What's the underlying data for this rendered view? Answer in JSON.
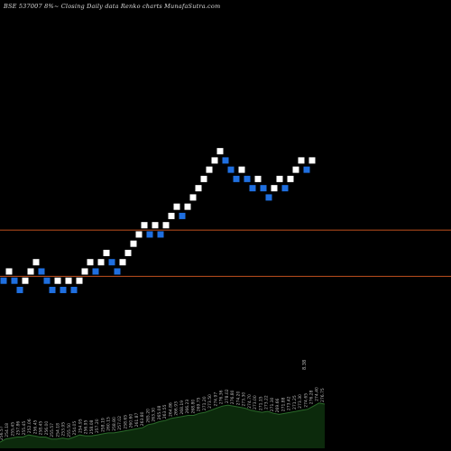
{
  "header": {
    "title": "BSE 537007 8%~  Closing Daily data  Renko  charts MunafaSutra.com"
  },
  "colors": {
    "background": "#000000",
    "brick_up": "#ffffff",
    "brick_down": "#1f6fe0",
    "reference_line": "#c0501e",
    "volume_fill": "#0c2a0c",
    "volume_line": "#2a6a2a",
    "label": "#bbbbbb"
  },
  "chart_data": {
    "type": "renko",
    "title": "BSE 537007 8%~  Closing Daily data  Renko  charts MunafaSutra.com",
    "bricks": [
      {
        "level": 255.45,
        "dir": "down"
      },
      {
        "level": 257.05,
        "dir": "up"
      },
      {
        "level": 255.45,
        "dir": "down"
      },
      {
        "level": 253.85,
        "dir": "down"
      },
      {
        "level": 255.45,
        "dir": "up"
      },
      {
        "level": 257.05,
        "dir": "up"
      },
      {
        "level": 258.65,
        "dir": "up"
      },
      {
        "level": 257.05,
        "dir": "down"
      },
      {
        "level": 255.45,
        "dir": "down"
      },
      {
        "level": 253.85,
        "dir": "down"
      },
      {
        "level": 255.45,
        "dir": "up"
      },
      {
        "level": 253.85,
        "dir": "down"
      },
      {
        "level": 255.45,
        "dir": "up"
      },
      {
        "level": 253.85,
        "dir": "down"
      },
      {
        "level": 255.45,
        "dir": "up"
      },
      {
        "level": 257.05,
        "dir": "up"
      },
      {
        "level": 258.65,
        "dir": "up"
      },
      {
        "level": 257.05,
        "dir": "down"
      },
      {
        "level": 258.65,
        "dir": "up"
      },
      {
        "level": 260.25,
        "dir": "up"
      },
      {
        "level": 258.65,
        "dir": "down"
      },
      {
        "level": 257.05,
        "dir": "down"
      },
      {
        "level": 258.65,
        "dir": "up"
      },
      {
        "level": 260.25,
        "dir": "up"
      },
      {
        "level": 261.85,
        "dir": "up"
      },
      {
        "level": 263.45,
        "dir": "up"
      },
      {
        "level": 265.05,
        "dir": "up"
      },
      {
        "level": 263.45,
        "dir": "down"
      },
      {
        "level": 265.05,
        "dir": "up"
      },
      {
        "level": 263.45,
        "dir": "down"
      },
      {
        "level": 265.05,
        "dir": "up"
      },
      {
        "level": 266.65,
        "dir": "up"
      },
      {
        "level": 268.25,
        "dir": "up"
      },
      {
        "level": 266.65,
        "dir": "down"
      },
      {
        "level": 268.25,
        "dir": "up"
      },
      {
        "level": 269.85,
        "dir": "up"
      },
      {
        "level": 271.45,
        "dir": "up"
      },
      {
        "level": 273.05,
        "dir": "up"
      },
      {
        "level": 274.65,
        "dir": "up"
      },
      {
        "level": 276.25,
        "dir": "up"
      },
      {
        "level": 277.85,
        "dir": "up"
      },
      {
        "level": 276.25,
        "dir": "down"
      },
      {
        "level": 274.65,
        "dir": "down"
      },
      {
        "level": 273.05,
        "dir": "down"
      },
      {
        "level": 274.65,
        "dir": "up"
      },
      {
        "level": 273.05,
        "dir": "down"
      },
      {
        "level": 271.45,
        "dir": "down"
      },
      {
        "level": 273.05,
        "dir": "up"
      },
      {
        "level": 271.45,
        "dir": "down"
      },
      {
        "level": 269.85,
        "dir": "down"
      },
      {
        "level": 271.45,
        "dir": "up"
      },
      {
        "level": 273.05,
        "dir": "up"
      },
      {
        "level": 271.45,
        "dir": "down"
      },
      {
        "level": 273.05,
        "dir": "up"
      },
      {
        "level": 274.65,
        "dir": "up"
      },
      {
        "level": 276.25,
        "dir": "up"
      },
      {
        "level": 274.65,
        "dir": "down"
      },
      {
        "level": 276.25,
        "dir": "up"
      }
    ],
    "reference_lines": [
      264.2,
      256.2
    ],
    "y_range": [
      226,
      304
    ],
    "volume_profile": [
      0.12,
      0.18,
      0.2,
      0.22,
      0.22,
      0.26,
      0.24,
      0.22,
      0.22,
      0.18,
      0.18,
      0.2,
      0.18,
      0.22,
      0.26,
      0.24,
      0.24,
      0.26,
      0.28,
      0.3,
      0.3,
      0.32,
      0.34,
      0.36,
      0.38,
      0.4,
      0.46,
      0.48,
      0.52,
      0.54,
      0.58,
      0.6,
      0.62,
      0.64,
      0.64,
      0.68,
      0.7,
      0.74,
      0.78,
      0.82,
      0.84,
      0.82,
      0.8,
      0.78,
      0.74,
      0.72,
      0.7,
      0.72,
      0.68,
      0.66,
      0.68,
      0.7,
      0.72,
      0.74,
      0.76,
      0.82,
      0.88,
      0.86
    ],
    "brick_labels": [
      "256.57",
      "254.18",
      "255.45",
      "257.86",
      "255.45",
      "252.06",
      "256.45",
      "258.45",
      "256.00",
      "255.57",
      "254.18",
      "253.95",
      "255.50",
      "254.05",
      "254.95",
      "256.95",
      "258.08",
      "257.20",
      "258.19",
      "260.15",
      "258.80",
      "257.02",
      "258.65",
      "260.60",
      "261.87",
      "263.80",
      "265.20",
      "263.30",
      "265.08",
      "263.55",
      "264.86",
      "266.93",
      "268.19",
      "266.23",
      "268.80",
      "269.75",
      "271.20",
      "273.50",
      "274.97",
      "276.36",
      "278.02",
      "276.80",
      "274.20",
      "273.30",
      "274.70",
      "273.00",
      "271.15",
      "273.22",
      "271.30",
      "269.66",
      "271.88",
      "273.42",
      "271.25",
      "273.30",
      "274.65",
      "276.28",
      "274.40",
      "276.75"
    ],
    "annotation": "8.38"
  }
}
